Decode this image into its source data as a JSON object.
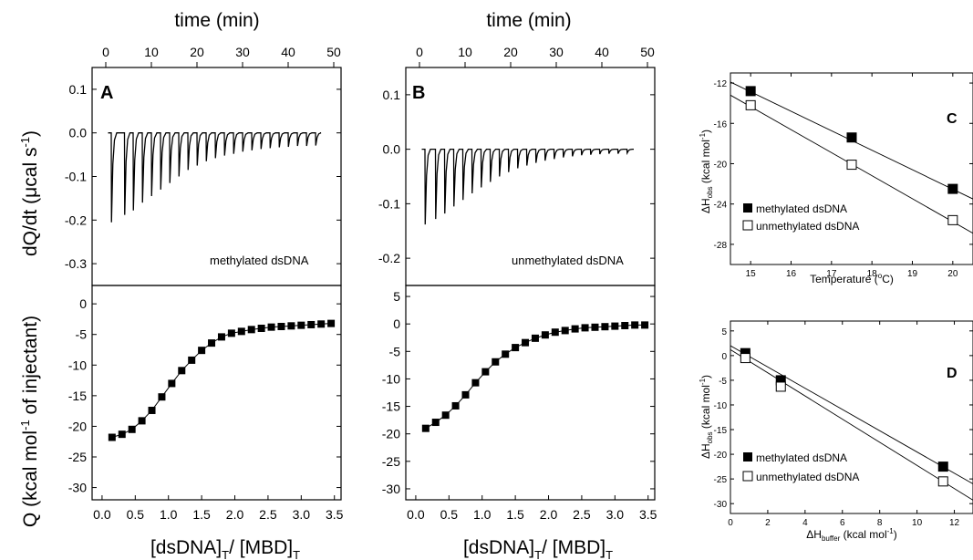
{
  "chart_data": [
    {
      "panel": "A",
      "type": "line",
      "top_axis": {
        "label": "time (min)",
        "ticks": [
          0,
          10,
          20,
          30,
          40,
          50
        ],
        "range": [
          0,
          50
        ]
      },
      "upper_plot": {
        "ylabel": "dQ/dt (μcal s⁻¹)",
        "ylim": [
          -0.35,
          0.15
        ],
        "yticks": [
          0.1,
          0.0,
          -0.1,
          -0.2,
          -0.3
        ],
        "annotation": "methylated dsDNA",
        "baseline": 0.0,
        "injections_time_min": [
          1.2,
          4.1,
          6.0,
          8.0,
          10.0,
          12.0,
          14.0,
          16.0,
          18.0,
          20.0,
          22.0,
          24.0,
          26.0,
          28.0,
          30.0,
          32.0,
          34.0,
          36.0,
          38.0,
          40.0,
          42.0,
          44.0,
          46.0
        ],
        "peak_values": [
          -0.205,
          -0.188,
          -0.178,
          -0.16,
          -0.145,
          -0.13,
          -0.115,
          -0.1,
          -0.085,
          -0.075,
          -0.065,
          -0.058,
          -0.052,
          -0.048,
          -0.043,
          -0.04,
          -0.037,
          -0.035,
          -0.033,
          -0.032,
          -0.03,
          -0.03,
          -0.029
        ]
      },
      "lower_plot": {
        "xlabel": "[dsDNA]T/ [MBD]T",
        "ylabel": "Q (kcal mol⁻¹ of injectant)",
        "xlim": [
          -0.15,
          3.6
        ],
        "ylim": [
          -32,
          3
        ],
        "xticks": [
          0.0,
          0.5,
          1.0,
          1.5,
          2.0,
          2.5,
          3.0,
          3.5
        ],
        "yticks": [
          0,
          -5,
          -10,
          -15,
          -20,
          -25,
          -30
        ],
        "x": [
          0.15,
          0.3,
          0.45,
          0.6,
          0.75,
          0.9,
          1.05,
          1.2,
          1.35,
          1.5,
          1.65,
          1.8,
          1.95,
          2.1,
          2.25,
          2.4,
          2.55,
          2.7,
          2.85,
          3.0,
          3.15,
          3.3,
          3.45
        ],
        "y": [
          -21.8,
          -21.3,
          -20.5,
          -19.1,
          -17.4,
          -15.2,
          -13.0,
          -10.9,
          -9.2,
          -7.6,
          -6.4,
          -5.4,
          -4.8,
          -4.5,
          -4.2,
          -4.0,
          -3.8,
          -3.7,
          -3.6,
          -3.5,
          -3.4,
          -3.3,
          -3.2
        ]
      }
    },
    {
      "panel": "B",
      "type": "line",
      "top_axis": {
        "label": "time (min)",
        "ticks": [
          0,
          10,
          20,
          30,
          40,
          50
        ],
        "range": [
          0,
          50
        ]
      },
      "upper_plot": {
        "ylim": [
          -0.25,
          0.15
        ],
        "yticks": [
          0.1,
          0.0,
          -0.1,
          -0.2
        ],
        "annotation": "unmethylated dsDNA",
        "baseline": 0.0,
        "injections_time_min": [
          1.2,
          3.5,
          5.5,
          7.5,
          9.5,
          11.5,
          13.5,
          15.5,
          17.5,
          19.5,
          21.5,
          23.5,
          25.5,
          27.5,
          29.5,
          31.5,
          33.5,
          35.5,
          37.5,
          39.5,
          41.5,
          43.5,
          45.5
        ],
        "peak_values": [
          -0.138,
          -0.128,
          -0.118,
          -0.105,
          -0.093,
          -0.081,
          -0.07,
          -0.06,
          -0.05,
          -0.042,
          -0.035,
          -0.03,
          -0.025,
          -0.021,
          -0.018,
          -0.015,
          -0.013,
          -0.011,
          -0.01,
          -0.009,
          -0.008,
          -0.008,
          -0.007
        ]
      },
      "lower_plot": {
        "xlabel": "[dsDNA]T/ [MBD]T",
        "xlim": [
          -0.15,
          3.6
        ],
        "ylim": [
          -32,
          7
        ],
        "xticks": [
          0.0,
          0.5,
          1.0,
          1.5,
          2.0,
          2.5,
          3.0,
          3.5
        ],
        "yticks": [
          5,
          0,
          -5,
          -10,
          -15,
          -20,
          -25,
          -30
        ],
        "x": [
          0.15,
          0.3,
          0.45,
          0.6,
          0.75,
          0.9,
          1.05,
          1.2,
          1.35,
          1.5,
          1.65,
          1.8,
          1.95,
          2.1,
          2.25,
          2.4,
          2.55,
          2.7,
          2.85,
          3.0,
          3.15,
          3.3,
          3.45
        ],
        "y": [
          -19.0,
          -17.9,
          -16.6,
          -14.9,
          -12.9,
          -10.7,
          -8.7,
          -6.9,
          -5.5,
          -4.3,
          -3.4,
          -2.6,
          -2.0,
          -1.5,
          -1.2,
          -0.9,
          -0.7,
          -0.6,
          -0.5,
          -0.4,
          -0.3,
          -0.2,
          -0.2
        ]
      }
    },
    {
      "panel": "C",
      "type": "scatter",
      "xlabel": "Temperature (°C)",
      "ylabel": "ΔHobs (kcal mol⁻¹)",
      "xlim": [
        14.5,
        20.5
      ],
      "ylim": [
        -30,
        -11
      ],
      "xticks": [
        15,
        16,
        17,
        18,
        19,
        20
      ],
      "yticks": [
        -12,
        -16,
        -20,
        -24,
        -28
      ],
      "legend_position": "bottom-left",
      "series": [
        {
          "name": "methylated dsDNA",
          "marker": "filled-square",
          "x": [
            15,
            17.5,
            20
          ],
          "y": [
            -12.8,
            -17.4,
            -22.5
          ],
          "fit": {
            "x": [
              14.5,
              20.5
            ],
            "y": [
              -11.9,
              -23.5
            ]
          }
        },
        {
          "name": "unmethylated dsDNA",
          "marker": "open-square",
          "x": [
            15,
            17.5,
            20
          ],
          "y": [
            -14.2,
            -20.1,
            -25.6
          ],
          "fit": {
            "x": [
              14.5,
              20.5
            ],
            "y": [
              -13.2,
              -26.9
            ]
          }
        }
      ]
    },
    {
      "panel": "D",
      "type": "scatter",
      "xlabel": "ΔHbuffer (kcal mol⁻¹)",
      "ylabel": "ΔHobs (kcal mol⁻¹)",
      "xlim": [
        0,
        13
      ],
      "ylim": [
        -32,
        7
      ],
      "xticks": [
        0,
        2,
        4,
        6,
        8,
        10,
        12
      ],
      "yticks": [
        5,
        0,
        -5,
        -10,
        -15,
        -20,
        -25,
        -30
      ],
      "legend_position": "bottom-left",
      "series": [
        {
          "name": "methylated dsDNA",
          "marker": "filled-square",
          "x": [
            0.8,
            2.7,
            11.4
          ],
          "y": [
            0.5,
            -5.0,
            -22.5
          ],
          "fit": {
            "x": [
              0,
              13
            ],
            "y": [
              2.0,
              -26.0
            ]
          }
        },
        {
          "name": "unmethylated dsDNA",
          "marker": "open-square",
          "x": [
            0.8,
            2.7,
            11.4
          ],
          "y": [
            -0.5,
            -6.3,
            -25.5
          ],
          "fit": {
            "x": [
              0,
              13
            ],
            "y": [
              1.2,
              -29.3
            ]
          }
        }
      ]
    }
  ],
  "text": {
    "top_label_A": "time (min)",
    "top_label_B": "time (min)",
    "ylabel_upper_A": "dQ/dt (μcal s⁻¹)",
    "ylabel_lower_A": "Q (kcal mol⁻¹ of injectant)",
    "xlabel_A": "[dsDNA]T/ [MBD]T",
    "xlabel_B": "[dsDNA]T/ [MBD]T",
    "letter_A": "A",
    "letter_B": "B",
    "letter_C": "C",
    "letter_D": "D",
    "annot_A": "methylated dsDNA",
    "annot_B": "unmethylated dsDNA",
    "xlabel_C": "Temperature (°C)",
    "ylabel_C": "ΔHobs (kcal mol⁻¹)",
    "xlabel_D": "ΔHbuffer (kcal mol⁻¹)",
    "ylabel_D": "ΔHobs (kcal mol⁻¹)",
    "legend_methyl": "methylated dsDNA",
    "legend_unmethyl": "unmethylated dsDNA"
  }
}
